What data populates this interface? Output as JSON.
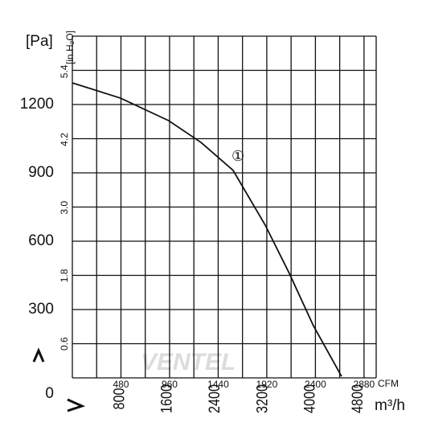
{
  "chart_data": {
    "type": "line",
    "y_unit_label": "[Pa]",
    "y2_unit_label": "[in.H₂O]",
    "x_unit_label": "CFM",
    "x2_unit_label": "m³/h",
    "curve_label": "①",
    "watermark": "VENTEL",
    "x": [
      0,
      476,
      952,
      1269,
      1587,
      1904,
      2142,
      2380,
      2658
    ],
    "values": [
      1295,
      1228,
      1129,
      1034,
      911,
      671,
      459,
      229,
      7
    ],
    "color": "#111111",
    "xlim": [
      0,
      3000
    ],
    "xticks": [
      480,
      960,
      1440,
      1920,
      2400,
      2880
    ],
    "x2lim": [
      0,
      5097
    ],
    "x2ticks": [
      800,
      1600,
      2400,
      3200,
      4000,
      4800
    ],
    "ylim": [
      0,
      1500
    ],
    "yticks": [
      0,
      300,
      600,
      900,
      1200
    ],
    "y2lim": [
      0,
      6.022
    ],
    "y2ticks": [
      0.6,
      1.8,
      {
        "value": 3,
        "label": "3.0"
      },
      4.2,
      5.4
    ],
    "xgrid": [
      0,
      240,
      480,
      720,
      960,
      1200,
      1440,
      1680,
      1920,
      2160,
      2400,
      2640,
      2880,
      3000
    ],
    "ygrid": [
      0,
      150,
      300,
      450,
      600,
      750,
      900,
      1050,
      1200,
      1350,
      1500
    ],
    "grid": true
  }
}
